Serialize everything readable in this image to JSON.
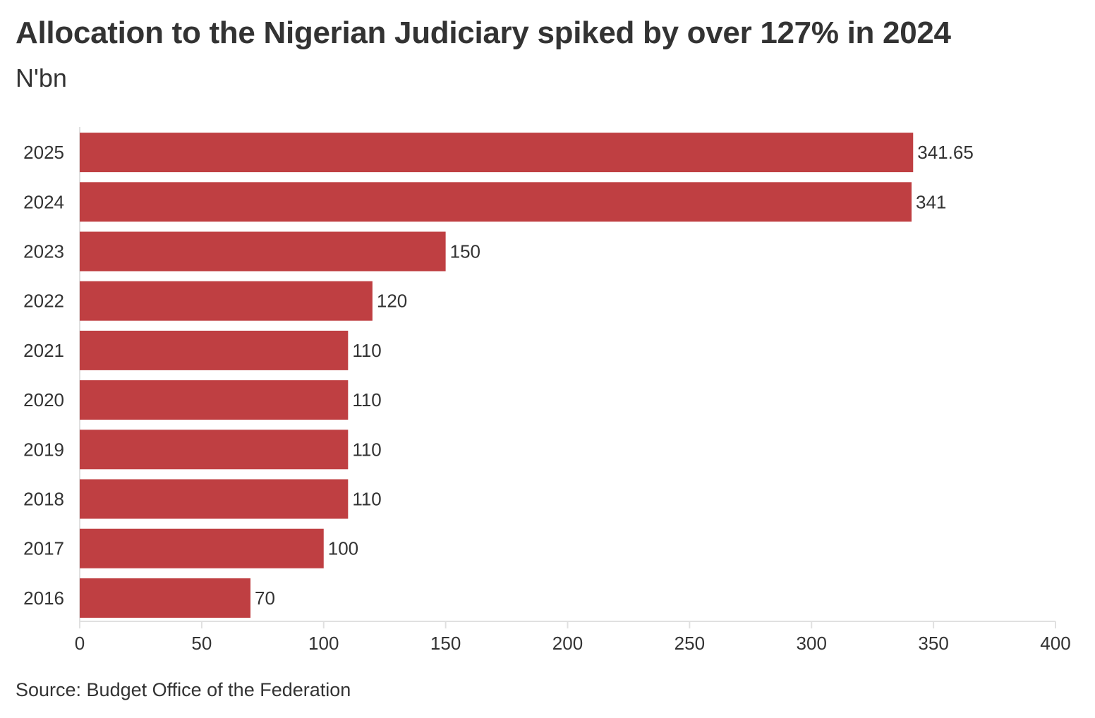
{
  "chart_data": {
    "type": "bar",
    "orientation": "horizontal",
    "title": "Allocation to the Nigerian Judiciary spiked by over 127% in 2024",
    "subtitle": "N'bn",
    "categories": [
      "2025",
      "2024",
      "2023",
      "2022",
      "2021",
      "2020",
      "2019",
      "2018",
      "2017",
      "2016"
    ],
    "values": [
      341.65,
      341,
      150,
      120,
      110,
      110,
      110,
      110,
      100,
      70
    ],
    "data_labels": [
      "341.65",
      "341",
      "150",
      "120",
      "110",
      "110",
      "110",
      "110",
      "100",
      "70"
    ],
    "x_ticks": [
      "0",
      "50",
      "100",
      "150",
      "200",
      "250",
      "300",
      "350",
      "400"
    ],
    "xlim": [
      0,
      400
    ],
    "xlabel": "",
    "ylabel": "",
    "grid": false,
    "legend": "none",
    "bar_color": "#bf3f42",
    "axis_color": "#e0e0e0",
    "text_color": "#333333"
  },
  "source": "Source: Budget Office of the Federation"
}
